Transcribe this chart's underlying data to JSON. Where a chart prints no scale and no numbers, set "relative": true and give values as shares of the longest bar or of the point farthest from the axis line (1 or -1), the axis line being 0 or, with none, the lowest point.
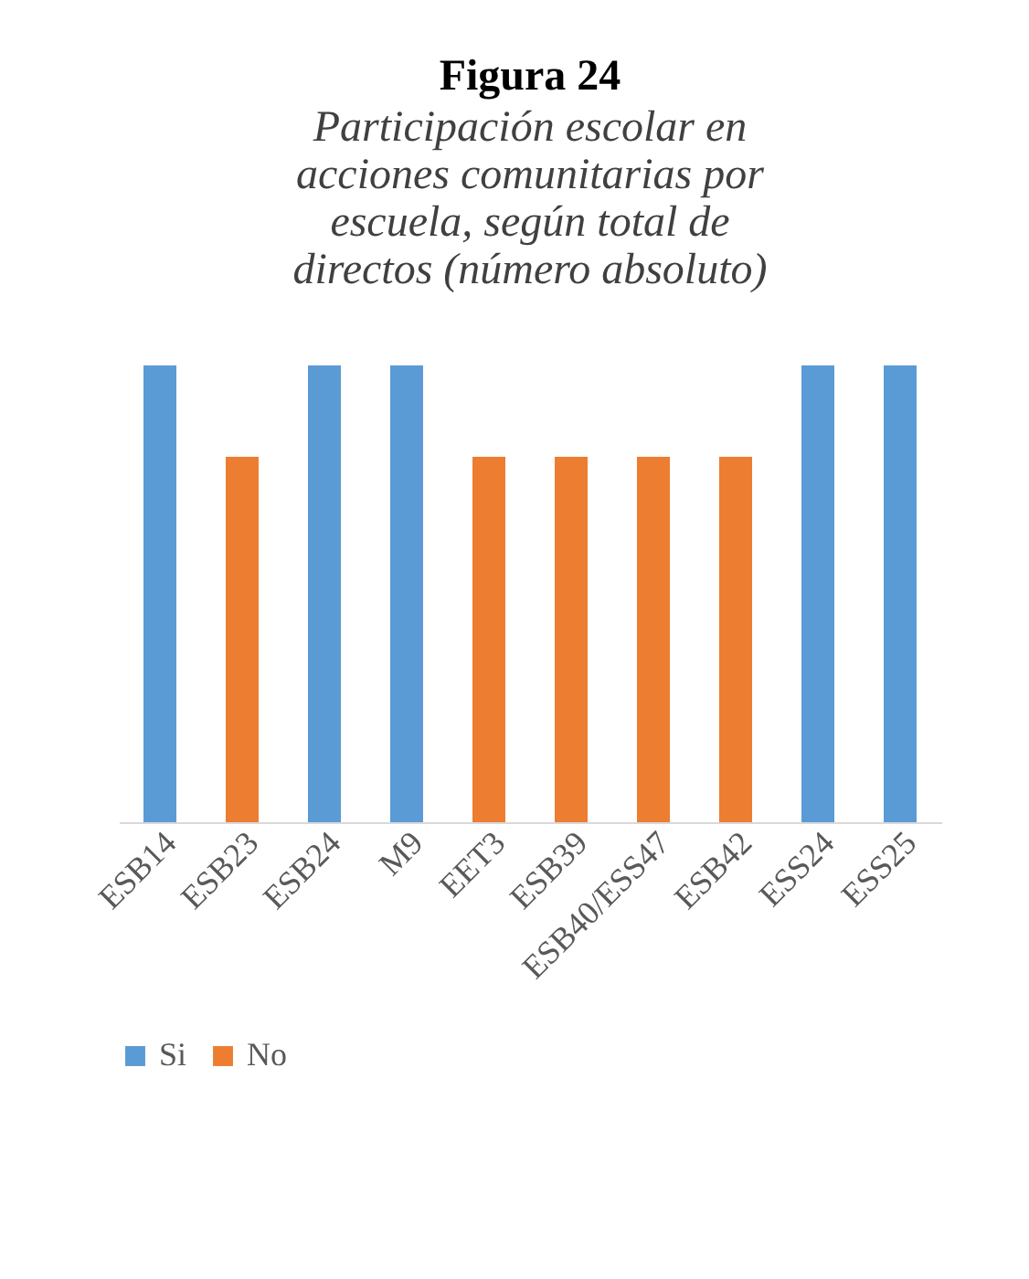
{
  "chart_data": {
    "type": "bar",
    "title": "Figura 24",
    "subtitle": "Participación escolar en acciones comunitarias por escuela, según total de directos (número absoluto)",
    "relative": true,
    "categories": [
      "ESB14",
      "ESB23",
      "ESB24",
      "M9",
      "EET3",
      "ESB39",
      "ESB40/ESS47",
      "ESB42",
      "ESS24",
      "ESS25"
    ],
    "series": [
      {
        "name": "Si",
        "color": "#5b9bd5",
        "values": [
          1,
          null,
          1,
          1,
          null,
          null,
          null,
          null,
          1,
          1
        ]
      },
      {
        "name": "No",
        "color": "#ed7d31",
        "values": [
          null,
          0.8,
          null,
          null,
          0.8,
          0.8,
          0.8,
          0.8,
          null,
          null
        ]
      }
    ],
    "grid": false,
    "legend": "bottom"
  }
}
